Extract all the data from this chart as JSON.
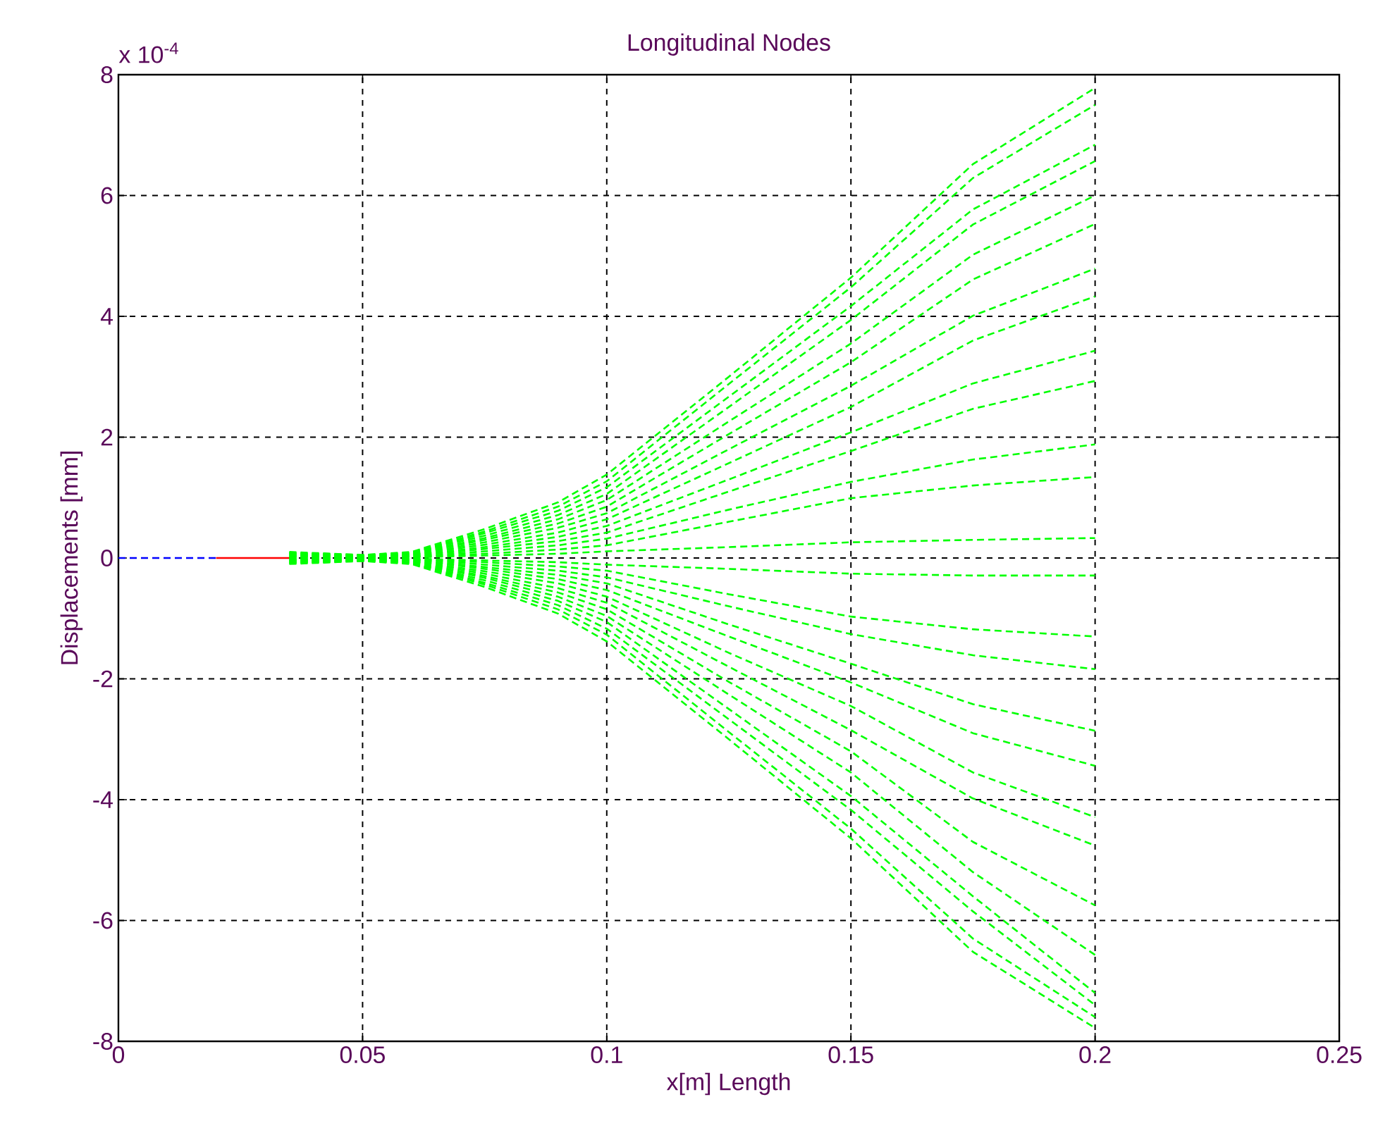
{
  "chart_data": {
    "type": "line",
    "title": "Longitudinal Nodes",
    "xlabel": "x[m] Length",
    "ylabel": "Displacements [mm]",
    "annotations": [
      "x 10$^{-4}$"
    ],
    "xlim": [
      0,
      0.25
    ],
    "xticks": [
      0,
      0.05,
      0.1,
      0.15,
      0.2,
      0.25
    ],
    "ylim": [
      -8,
      8
    ],
    "yticks": [
      -8,
      -6,
      -4,
      -2,
      0,
      2,
      4,
      6,
      8
    ],
    "grid": true,
    "line_style": "dashed",
    "series": [
      {
        "color": "#0000ff",
        "x": [
          0,
          0.02
        ],
        "values": [
          0,
          0
        ]
      },
      {
        "color": "#ff0000",
        "line_style": "solid",
        "x": [
          0.02,
          0.035
        ],
        "values": [
          0,
          0
        ]
      },
      {
        "color": "#00ff00",
        "x": [
          0.035,
          0.05,
          0.06,
          0.075,
          0.09,
          0.1,
          0.125,
          0.15,
          0.175,
          0.2
        ],
        "values": [
          0.1,
          0.05,
          0.1,
          0.48,
          0.92,
          1.38,
          3.0,
          4.64,
          6.52,
          7.78
        ]
      },
      {
        "color": "#00ff00",
        "x": [
          0.035,
          0.05,
          0.06,
          0.075,
          0.09,
          0.1,
          0.125,
          0.15,
          0.175,
          0.2
        ],
        "values": [
          0.09,
          0.05,
          0.09,
          0.44,
          0.85,
          1.27,
          2.88,
          4.48,
          6.29,
          7.5
        ]
      },
      {
        "color": "#00ff00",
        "x": [
          0.035,
          0.05,
          0.06,
          0.075,
          0.09,
          0.1,
          0.125,
          0.15,
          0.175,
          0.2
        ],
        "values": [
          0.08,
          0.04,
          0.08,
          0.41,
          0.78,
          1.17,
          2.67,
          4.17,
          5.77,
          6.84
        ]
      },
      {
        "color": "#00ff00",
        "x": [
          0.035,
          0.05,
          0.06,
          0.075,
          0.09,
          0.1,
          0.125,
          0.15,
          0.175,
          0.2
        ],
        "values": [
          0.08,
          0.04,
          0.08,
          0.37,
          0.71,
          1.06,
          2.5,
          3.94,
          5.52,
          6.57
        ]
      },
      {
        "color": "#00ff00",
        "x": [
          0.035,
          0.05,
          0.06,
          0.075,
          0.09,
          0.1,
          0.125,
          0.15,
          0.175,
          0.2
        ],
        "values": [
          0.07,
          0.03,
          0.07,
          0.33,
          0.64,
          0.96,
          2.26,
          3.55,
          5.02,
          6.0
        ]
      },
      {
        "color": "#00ff00",
        "x": [
          0.035,
          0.05,
          0.06,
          0.075,
          0.09,
          0.1,
          0.125,
          0.15,
          0.175,
          0.2
        ],
        "values": [
          0.06,
          0.03,
          0.06,
          0.3,
          0.57,
          0.85,
          2.05,
          3.24,
          4.61,
          5.53
        ]
      },
      {
        "color": "#00ff00",
        "x": [
          0.035,
          0.05,
          0.06,
          0.075,
          0.09,
          0.1,
          0.125,
          0.15,
          0.175,
          0.2
        ],
        "values": [
          0.05,
          0.03,
          0.05,
          0.26,
          0.5,
          0.74,
          1.8,
          2.85,
          4.01,
          4.79
        ]
      },
      {
        "color": "#00ff00",
        "x": [
          0.035,
          0.05,
          0.06,
          0.075,
          0.09,
          0.1,
          0.125,
          0.15,
          0.175,
          0.2
        ],
        "values": [
          0.05,
          0.02,
          0.05,
          0.22,
          0.42,
          0.64,
          1.57,
          2.5,
          3.6,
          4.33
        ]
      },
      {
        "color": "#00ff00",
        "x": [
          0.035,
          0.05,
          0.06,
          0.075,
          0.09,
          0.1,
          0.125,
          0.15,
          0.175,
          0.2
        ],
        "values": [
          0.04,
          0.02,
          0.04,
          0.18,
          0.35,
          0.53,
          1.3,
          2.08,
          2.89,
          3.43
        ]
      },
      {
        "color": "#00ff00",
        "x": [
          0.035,
          0.05,
          0.06,
          0.075,
          0.09,
          0.1,
          0.125,
          0.15,
          0.175,
          0.2
        ],
        "values": [
          0.03,
          0.02,
          0.03,
          0.15,
          0.28,
          0.42,
          1.1,
          1.77,
          2.47,
          2.93
        ]
      },
      {
        "color": "#00ff00",
        "x": [
          0.035,
          0.05,
          0.06,
          0.075,
          0.09,
          0.1,
          0.125,
          0.15,
          0.175,
          0.2
        ],
        "values": [
          0.02,
          0.01,
          0.02,
          0.11,
          0.21,
          0.32,
          0.8,
          1.26,
          1.63,
          1.88
        ]
      },
      {
        "color": "#00ff00",
        "x": [
          0.035,
          0.05,
          0.06,
          0.075,
          0.09,
          0.1,
          0.125,
          0.15,
          0.175,
          0.2
        ],
        "values": [
          0.02,
          0.01,
          0.02,
          0.07,
          0.14,
          0.21,
          0.6,
          0.99,
          1.2,
          1.34
        ]
      },
      {
        "color": "#00ff00",
        "x": [
          0.035,
          0.05,
          0.06,
          0.075,
          0.09,
          0.1,
          0.125,
          0.15,
          0.175,
          0.2
        ],
        "values": [
          0.01,
          0.0,
          0.01,
          0.04,
          0.07,
          0.11,
          0.18,
          0.26,
          0.3,
          0.33
        ]
      },
      {
        "color": "#00ff00",
        "x": [
          0.035,
          0.05,
          0.06,
          0.075,
          0.09,
          0.1,
          0.125,
          0.15,
          0.175,
          0.2
        ],
        "values": [
          -0.01,
          0.0,
          -0.01,
          -0.04,
          -0.07,
          -0.11,
          -0.18,
          -0.26,
          -0.29,
          -0.29
        ]
      },
      {
        "color": "#00ff00",
        "x": [
          0.035,
          0.05,
          0.06,
          0.075,
          0.09,
          0.1,
          0.125,
          0.15,
          0.175,
          0.2
        ],
        "values": [
          -0.02,
          -0.01,
          -0.02,
          -0.07,
          -0.14,
          -0.21,
          -0.6,
          -0.97,
          -1.18,
          -1.3
        ]
      },
      {
        "color": "#00ff00",
        "x": [
          0.035,
          0.05,
          0.06,
          0.075,
          0.09,
          0.1,
          0.125,
          0.15,
          0.175,
          0.2
        ],
        "values": [
          -0.02,
          -0.01,
          -0.02,
          -0.11,
          -0.21,
          -0.32,
          -0.8,
          -1.26,
          -1.61,
          -1.84
        ]
      },
      {
        "color": "#00ff00",
        "x": [
          0.035,
          0.05,
          0.06,
          0.075,
          0.09,
          0.1,
          0.125,
          0.15,
          0.175,
          0.2
        ],
        "values": [
          -0.03,
          -0.02,
          -0.03,
          -0.15,
          -0.28,
          -0.42,
          -1.1,
          -1.75,
          -2.42,
          -2.86
        ]
      },
      {
        "color": "#00ff00",
        "x": [
          0.035,
          0.05,
          0.06,
          0.075,
          0.09,
          0.1,
          0.125,
          0.15,
          0.175,
          0.2
        ],
        "values": [
          -0.04,
          -0.02,
          -0.04,
          -0.18,
          -0.35,
          -0.53,
          -1.3,
          -2.06,
          -2.9,
          -3.44
        ]
      },
      {
        "color": "#00ff00",
        "x": [
          0.035,
          0.05,
          0.06,
          0.075,
          0.09,
          0.1,
          0.125,
          0.15,
          0.175,
          0.2
        ],
        "values": [
          -0.05,
          -0.02,
          -0.05,
          -0.22,
          -0.42,
          -0.64,
          -1.57,
          -2.45,
          -3.55,
          -4.29
        ]
      },
      {
        "color": "#00ff00",
        "x": [
          0.035,
          0.05,
          0.06,
          0.075,
          0.09,
          0.1,
          0.125,
          0.15,
          0.175,
          0.2
        ],
        "values": [
          -0.05,
          -0.03,
          -0.05,
          -0.26,
          -0.5,
          -0.74,
          -1.8,
          -2.85,
          -3.98,
          -4.76
        ]
      },
      {
        "color": "#00ff00",
        "x": [
          0.035,
          0.05,
          0.06,
          0.075,
          0.09,
          0.1,
          0.125,
          0.15,
          0.175,
          0.2
        ],
        "values": [
          -0.06,
          -0.03,
          -0.06,
          -0.3,
          -0.57,
          -0.85,
          -2.05,
          -3.2,
          -4.7,
          -5.75
        ]
      },
      {
        "color": "#00ff00",
        "x": [
          0.035,
          0.05,
          0.06,
          0.075,
          0.09,
          0.1,
          0.125,
          0.15,
          0.175,
          0.2
        ],
        "values": [
          -0.07,
          -0.03,
          -0.07,
          -0.33,
          -0.64,
          -0.96,
          -2.26,
          -3.55,
          -5.2,
          -6.57
        ]
      },
      {
        "color": "#00ff00",
        "x": [
          0.035,
          0.05,
          0.06,
          0.075,
          0.09,
          0.1,
          0.125,
          0.15,
          0.175,
          0.2
        ],
        "values": [
          -0.08,
          -0.04,
          -0.08,
          -0.37,
          -0.71,
          -1.06,
          -2.5,
          -3.94,
          -5.6,
          -7.2
        ]
      },
      {
        "color": "#00ff00",
        "x": [
          0.035,
          0.05,
          0.06,
          0.075,
          0.09,
          0.1,
          0.125,
          0.15,
          0.175,
          0.2
        ],
        "values": [
          -0.08,
          -0.04,
          -0.08,
          -0.41,
          -0.78,
          -1.17,
          -2.67,
          -4.17,
          -5.85,
          -7.4
        ]
      },
      {
        "color": "#00ff00",
        "x": [
          0.035,
          0.05,
          0.06,
          0.075,
          0.09,
          0.1,
          0.125,
          0.15,
          0.175,
          0.2
        ],
        "values": [
          -0.09,
          -0.05,
          -0.09,
          -0.44,
          -0.85,
          -1.27,
          -2.88,
          -4.48,
          -6.3,
          -7.6
        ]
      },
      {
        "color": "#00ff00",
        "x": [
          0.035,
          0.05,
          0.06,
          0.075,
          0.09,
          0.1,
          0.125,
          0.15,
          0.175,
          0.2
        ],
        "values": [
          -0.1,
          -0.05,
          -0.1,
          -0.48,
          -0.92,
          -1.38,
          -3.0,
          -4.64,
          -6.52,
          -7.78
        ]
      }
    ]
  }
}
